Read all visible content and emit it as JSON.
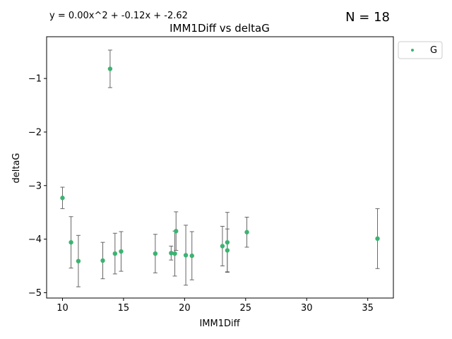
{
  "chart_data": {
    "type": "scatter",
    "title": "IMM1Diff vs deltaG",
    "equation": "y = 0.00x^2 + -0.12x + -2.62",
    "n_label": "N = 18",
    "xlabel": "IMM1Diff",
    "ylabel": "deltaG",
    "xlim": [
      8.7,
      37.1
    ],
    "ylim": [
      -5.1,
      -0.22
    ],
    "x_ticks": [
      10,
      15,
      20,
      25,
      30,
      35
    ],
    "x_tick_labels": [
      "10",
      "15",
      "20",
      "25",
      "30",
      "35"
    ],
    "y_ticks": [
      -5,
      -4,
      -3,
      -2,
      -1
    ],
    "y_tick_labels": [
      "−5",
      "−4",
      "−3",
      "−2",
      "−1"
    ],
    "legend": {
      "label": "G",
      "placement": "outside-top-right"
    },
    "grid": false,
    "colors": {
      "points": "#3cb371",
      "fit": "#ff0000",
      "errorbar": "#666666"
    },
    "series": [
      {
        "name": "G",
        "points": [
          {
            "x": 10.0,
            "y": -3.23,
            "err": 0.2
          },
          {
            "x": 10.7,
            "y": -4.06,
            "err": 0.48
          },
          {
            "x": 11.3,
            "y": -4.41,
            "err": 0.48
          },
          {
            "x": 13.3,
            "y": -4.4,
            "err": 0.34
          },
          {
            "x": 13.9,
            "y": -0.82,
            "err": 0.35
          },
          {
            "x": 14.3,
            "y": -4.27,
            "err": 0.38
          },
          {
            "x": 14.8,
            "y": -4.23,
            "err": 0.37
          },
          {
            "x": 17.6,
            "y": -4.27,
            "err": 0.36
          },
          {
            "x": 18.9,
            "y": -4.26,
            "err": 0.13
          },
          {
            "x": 19.2,
            "y": -4.27,
            "err": 0.42
          },
          {
            "x": 19.3,
            "y": -3.85,
            "err": 0.36
          },
          {
            "x": 20.1,
            "y": -4.3,
            "err": 0.56
          },
          {
            "x": 20.6,
            "y": -4.31,
            "err": 0.45
          },
          {
            "x": 23.1,
            "y": -4.13,
            "err": 0.37
          },
          {
            "x": 23.5,
            "y": -4.06,
            "err": 0.56
          },
          {
            "x": 23.5,
            "y": -4.21,
            "err": 0.4
          },
          {
            "x": 25.1,
            "y": -3.87,
            "err": 0.28
          },
          {
            "x": 35.8,
            "y": -3.99,
            "err": 0.56
          }
        ]
      }
    ],
    "fit_order": [
      0,
      2,
      5,
      7,
      9,
      12,
      14,
      16,
      13,
      11,
      10,
      8,
      6,
      4,
      3,
      1,
      15,
      17
    ]
  }
}
